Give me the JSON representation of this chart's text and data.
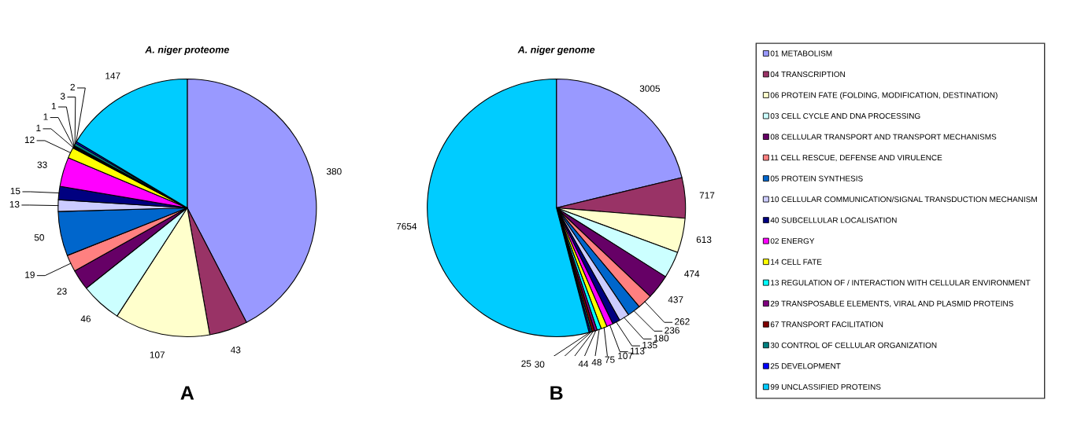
{
  "chart_data": [
    {
      "type": "pie",
      "title": "A. niger proteome",
      "annotations": [
        "A"
      ],
      "data_labels": true,
      "legend": "right",
      "categories": [
        "01 METABOLISM",
        "04 TRANSCRIPTION",
        "06 PROTEIN FATE (FOLDING, MODIFICATION, DESTINATION)",
        "03 CELL CYCLE AND DNA PROCESSING",
        "08 CELLULAR TRANSPORT AND TRANSPORT MECHANISMS",
        "11 CELL RESCUE, DEFENSE AND VIRULENCE",
        "05 PROTEIN SYNTHESIS",
        "10 CELLULAR COMMUNICATION/SIGNAL TRANSDUCTION MECHANISM",
        "40 SUBCELLULAR LOCALISATION",
        "02 ENERGY",
        "14 CELL FATE",
        "13 REGULATION OF / INTERACTION WITH CELLULAR ENVIRONMENT",
        "29 TRANSPOSABLE ELEMENTS, VIRAL AND PLASMID PROTEINS",
        "67 TRANSPORT FACILITATION",
        "30 CONTROL OF CELLULAR ORGANIZATION",
        "25 DEVELOPMENT",
        "99 UNCLASSIFIED PROTEINS"
      ],
      "values": [
        380,
        43,
        107,
        46,
        23,
        19,
        50,
        13,
        15,
        33,
        12,
        1,
        1,
        1,
        3,
        2,
        147
      ],
      "colors": [
        "#9999ff",
        "#993366",
        "#ffffcc",
        "#ccffff",
        "#660066",
        "#ff8080",
        "#0066cc",
        "#ccccff",
        "#000080",
        "#ff00ff",
        "#ffff00",
        "#00ffff",
        "#800080",
        "#800000",
        "#008080",
        "#0000ff",
        "#00ccff"
      ]
    },
    {
      "type": "pie",
      "title": "A. niger genome",
      "annotations": [
        "B"
      ],
      "data_labels": true,
      "legend": false,
      "categories": [
        null,
        null,
        null,
        null,
        null,
        null,
        null,
        null,
        null,
        null,
        null,
        null,
        null,
        null,
        null,
        null,
        null
      ],
      "values": [
        3005,
        717,
        613,
        474,
        437,
        262,
        236,
        180,
        135,
        113,
        107,
        75,
        48,
        44,
        30,
        25,
        7654
      ],
      "colors": [
        "#9999ff",
        "#993366",
        "#ffffcc",
        "#ccffff",
        "#660066",
        "#ff8080",
        "#0066cc",
        "#ccccff",
        "#000080",
        "#ff00ff",
        "#ffff00",
        "#00ffff",
        "#800080",
        "#800000",
        "#008080",
        "#0000ff",
        "#00ccff"
      ]
    }
  ]
}
